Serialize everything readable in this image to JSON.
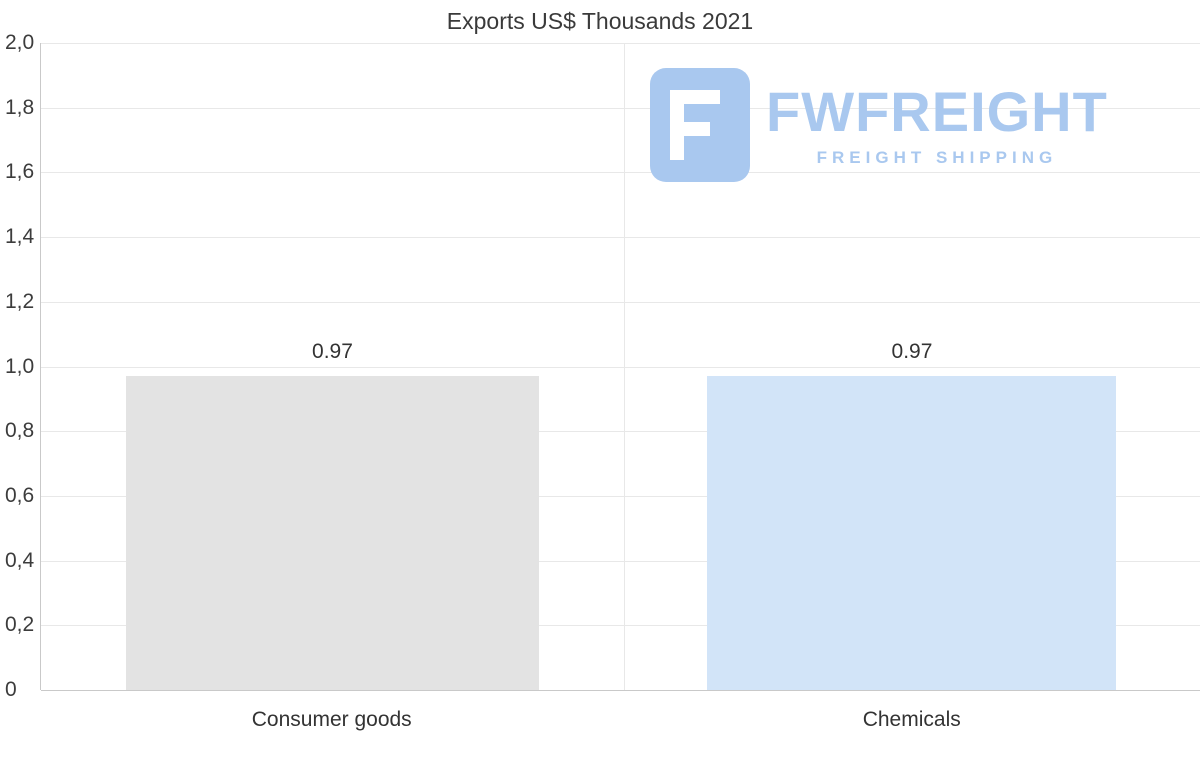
{
  "chart_data": {
    "type": "bar",
    "title": "Exports US$ Thousands 2021",
    "categories": [
      "Consumer goods",
      "Chemicals"
    ],
    "values": [
      0.97,
      0.97
    ],
    "value_labels": [
      "0.97",
      "0.97"
    ],
    "bar_colors": [
      "#e3e3e3",
      "#d2e4f8"
    ],
    "xlabel": "",
    "ylabel": "",
    "ylim": [
      0,
      2.0
    ],
    "ytick_labels": [
      "2,0",
      "1,8",
      "1,6",
      "1,4",
      "1,2",
      "1,0",
      "0,8",
      "0,6",
      "0,4",
      "0,2",
      "0"
    ],
    "grid": true,
    "legend_position": "none"
  },
  "watermark": {
    "brand": "FWFREIGHT",
    "tagline": "FREIGHT SHIPPING",
    "color": "#a9c8ef",
    "logo_icon": "fwfreight-logo-icon"
  }
}
